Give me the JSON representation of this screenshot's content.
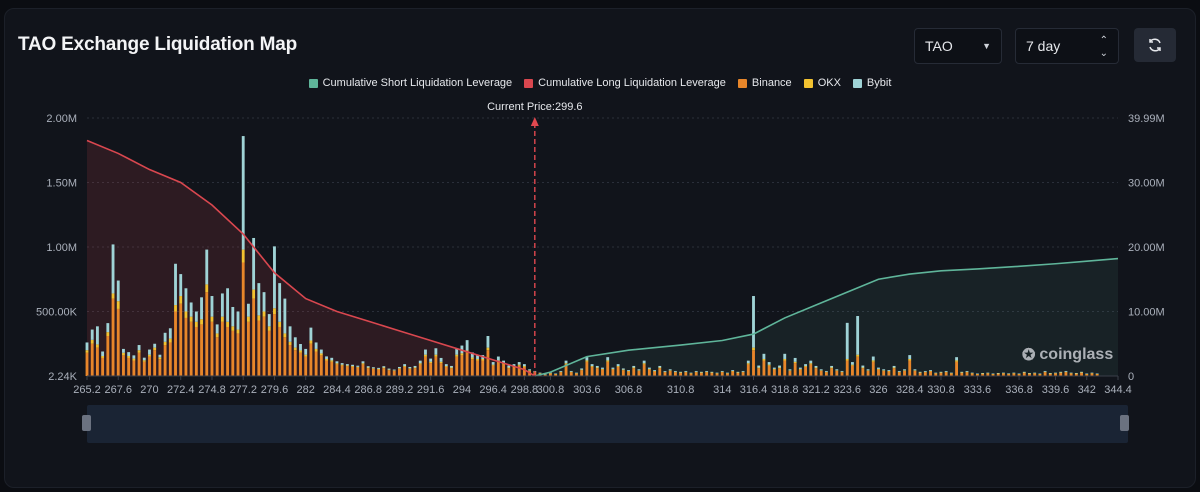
{
  "header": {
    "title": "TAO Exchange Liquidation Map"
  },
  "controls": {
    "coin": "TAO",
    "period": "7 day"
  },
  "watermark": "coinglass",
  "colors": {
    "short_line": "#5fb59a",
    "long_line": "#d9474f",
    "binance": "#e8862a",
    "okx": "#f2c230",
    "bybit": "#9fd3d6"
  },
  "chart_data": {
    "type": "bar",
    "title": "TAO Exchange Liquidation Map",
    "current_price_label": "Current Price:299.6",
    "current_price": 299.6,
    "legend": [
      "Cumulative Short Liquidation Leverage",
      "Cumulative Long Liquidation Leverage",
      "Binance",
      "OKX",
      "Bybit"
    ],
    "x_range": [
      265.2,
      344.4
    ],
    "x_ticks": [
      "265.2",
      "267.6",
      "270",
      "272.4",
      "274.8",
      "277.2",
      "279.6",
      "282",
      "284.4",
      "286.8",
      "289.2",
      "291.6",
      "294",
      "296.4",
      "298.8",
      "300.8",
      "303.6",
      "306.8",
      "310.8",
      "314",
      "316.4",
      "318.8",
      "321.2",
      "323.6",
      "326",
      "328.4",
      "330.8",
      "333.6",
      "336.8",
      "339.6",
      "342",
      "344.4"
    ],
    "y_left_ticks": [
      "2.24K",
      "500.00K",
      "1.00M",
      "1.50M",
      "2.00M"
    ],
    "y_left_range": [
      0,
      2000000
    ],
    "y_right_ticks": [
      "0",
      "10.00M",
      "20.00M",
      "30.00M",
      "39.99M"
    ],
    "y_right_range": [
      0,
      39990000
    ],
    "bars_x": [
      265.2,
      265.6,
      266.0,
      266.4,
      266.8,
      267.2,
      267.6,
      268.0,
      268.4,
      268.8,
      269.2,
      269.6,
      270.0,
      270.4,
      270.8,
      271.2,
      271.6,
      272.0,
      272.4,
      272.8,
      273.2,
      273.6,
      274.0,
      274.4,
      274.8,
      275.2,
      275.6,
      276.0,
      276.4,
      276.8,
      277.2,
      277.6,
      278.0,
      278.4,
      278.8,
      279.2,
      279.6,
      280.0,
      280.4,
      280.8,
      281.2,
      281.6,
      282.0,
      282.4,
      282.8,
      283.2,
      283.6,
      284.0,
      284.4,
      284.8,
      285.2,
      285.6,
      286.0,
      286.4,
      286.8,
      287.2,
      287.6,
      288.0,
      288.4,
      288.8,
      289.2,
      289.6,
      290.0,
      290.4,
      290.8,
      291.2,
      291.6,
      292.0,
      292.4,
      292.8,
      293.2,
      293.6,
      294.0,
      294.4,
      294.8,
      295.2,
      295.6,
      296.0,
      296.4,
      296.8,
      297.2,
      297.6,
      298.0,
      298.4,
      298.8,
      299.2,
      299.6,
      300.0,
      300.4,
      300.8,
      301.2,
      301.6,
      302.0,
      302.4,
      302.8,
      303.2,
      303.6,
      304.0,
      304.4,
      304.8,
      305.2,
      305.6,
      306.0,
      306.4,
      306.8,
      307.2,
      307.6,
      308.0,
      308.4,
      308.8,
      309.2,
      309.6,
      310.0,
      310.4,
      310.8,
      311.2,
      311.6,
      312.0,
      312.4,
      312.8,
      313.2,
      313.6,
      314.0,
      314.4,
      314.8,
      315.2,
      315.6,
      316.0,
      316.4,
      316.8,
      317.2,
      317.6,
      318.0,
      318.4,
      318.8,
      319.2,
      319.6,
      320.0,
      320.4,
      320.8,
      321.2,
      321.6,
      322.0,
      322.4,
      322.8,
      323.2,
      323.6,
      324.0,
      324.4,
      324.8,
      325.2,
      325.6,
      326.0,
      326.4,
      326.8,
      327.2,
      327.6,
      328.0,
      328.4,
      328.8,
      329.2,
      329.6,
      330.0,
      330.4,
      330.8,
      331.2,
      331.6,
      332.0,
      332.4,
      332.8,
      333.2,
      333.6,
      334.0,
      334.4,
      334.8,
      335.2,
      335.6,
      336.0,
      336.4,
      336.8,
      337.2,
      337.6,
      338.0,
      338.4,
      338.8,
      339.2,
      339.6,
      340.0,
      340.4,
      340.8,
      341.2,
      341.6,
      342.0,
      342.4,
      342.8,
      343.2,
      343.6,
      344.0,
      344.4
    ],
    "series": [
      {
        "name": "Binance",
        "values": [
          180000,
          250000,
          220000,
          140000,
          310000,
          600000,
          520000,
          160000,
          140000,
          120000,
          180000,
          110000,
          150000,
          200000,
          130000,
          240000,
          260000,
          500000,
          560000,
          450000,
          420000,
          380000,
          400000,
          650000,
          420000,
          300000,
          420000,
          380000,
          350000,
          330000,
          880000,
          420000,
          600000,
          430000,
          460000,
          350000,
          480000,
          380000,
          300000,
          240000,
          200000,
          180000,
          150000,
          250000,
          190000,
          160000,
          120000,
          110000,
          90000,
          80000,
          75000,
          70000,
          65000,
          90000,
          60000,
          55000,
          50000,
          60000,
          45000,
          40000,
          55000,
          70000,
          55000,
          60000,
          90000,
          150000,
          100000,
          150000,
          100000,
          70000,
          60000,
          150000,
          160000,
          180000,
          130000,
          120000,
          120000,
          200000,
          80000,
          110000,
          90000,
          60000,
          70000,
          80000,
          70000,
          40000,
          30000,
          20000,
          10000,
          20000,
          15000,
          30000,
          90000,
          30000,
          20000,
          45000,
          110000,
          70000,
          60000,
          50000,
          110000,
          50000,
          70000,
          45000,
          35000,
          60000,
          40000,
          90000,
          50000,
          35000,
          60000,
          30000,
          40000,
          30000,
          25000,
          30000,
          20000,
          30000,
          25000,
          30000,
          25000,
          20000,
          30000,
          20000,
          35000,
          25000,
          30000,
          90000,
          200000,
          60000,
          120000,
          80000,
          50000,
          60000,
          120000,
          40000,
          100000,
          50000,
          70000,
          90000,
          60000,
          40000,
          30000,
          60000,
          40000,
          30000,
          120000,
          80000,
          150000,
          60000,
          40000,
          110000,
          50000,
          40000,
          35000,
          60000,
          30000,
          40000,
          120000,
          40000,
          25000,
          30000,
          35000,
          20000,
          25000,
          30000,
          20000,
          110000,
          25000,
          30000,
          20000,
          15000,
          18000,
          20000,
          15000,
          18000,
          20000,
          16000,
          20000,
          15000,
          25000,
          18000,
          20000,
          15000,
          30000,
          18000,
          20000,
          25000,
          30000,
          20000,
          18000,
          25000,
          15000,
          20000,
          15000
        ]
      },
      {
        "name": "OKX",
        "values": [
          20000,
          30000,
          25000,
          15000,
          30000,
          40000,
          60000,
          20000,
          15000,
          15000,
          20000,
          12000,
          15000,
          20000,
          15000,
          25000,
          30000,
          50000,
          60000,
          50000,
          40000,
          40000,
          40000,
          60000,
          40000,
          30000,
          40000,
          40000,
          35000,
          30000,
          100000,
          40000,
          70000,
          40000,
          40000,
          35000,
          45000,
          40000,
          30000,
          25000,
          20000,
          18000,
          15000,
          25000,
          20000,
          15000,
          12000,
          11000,
          9000,
          8000,
          7000,
          7000,
          6000,
          9000,
          6000,
          5000,
          5000,
          6000,
          4500,
          4000,
          5000,
          7000,
          5000,
          6000,
          9000,
          15000,
          10000,
          15000,
          10000,
          7000,
          6000,
          15000,
          16000,
          18000,
          13000,
          12000,
          12000,
          20000,
          8000,
          11000,
          9000,
          6000,
          7000,
          8000,
          7000,
          4000,
          3000,
          2000,
          1000,
          2000,
          1500,
          3000,
          9000,
          3000,
          2000,
          4500,
          11000,
          7000,
          6000,
          5000,
          11000,
          5000,
          7000,
          4500,
          3500,
          6000,
          4000,
          9000,
          5000,
          3500,
          6000,
          3000,
          4000,
          3000,
          2500,
          3000,
          2000,
          3000,
          2500,
          3000,
          2500,
          2000,
          3000,
          2000,
          3500,
          2500,
          3000,
          9000,
          20000,
          6000,
          12000,
          8000,
          5000,
          6000,
          12000,
          4000,
          10000,
          5000,
          7000,
          9000,
          6000,
          4000,
          3000,
          6000,
          4000,
          3000,
          12000,
          8000,
          15000,
          6000,
          4000,
          11000,
          5000,
          4000,
          3500,
          6000,
          3000,
          4000,
          12000,
          4000,
          2500,
          3000,
          3500,
          2000,
          2500,
          3000,
          2000,
          11000,
          2500,
          3000,
          2000,
          1500,
          1800,
          2000,
          1500,
          1800,
          2000,
          1600,
          2000,
          1500,
          2500,
          1800,
          2000,
          1500,
          3000,
          1800,
          2000,
          2500,
          3000,
          2000,
          1800,
          2500,
          1500,
          2000,
          1500
        ]
      },
      {
        "name": "Bybit",
        "values": [
          60000,
          80000,
          140000,
          35000,
          70000,
          380000,
          160000,
          30000,
          30000,
          25000,
          40000,
          20000,
          40000,
          30000,
          20000,
          70000,
          80000,
          320000,
          170000,
          180000,
          110000,
          80000,
          170000,
          270000,
          160000,
          70000,
          180000,
          260000,
          150000,
          140000,
          880000,
          100000,
          400000,
          250000,
          150000,
          95000,
          480000,
          300000,
          270000,
          120000,
          80000,
          50000,
          45000,
          100000,
          50000,
          30000,
          20000,
          20000,
          15000,
          12000,
          10000,
          10000,
          9000,
          15000,
          10000,
          8000,
          8000,
          10000,
          8000,
          6000,
          10000,
          15000,
          10000,
          12000,
          20000,
          40000,
          25000,
          50000,
          30000,
          15000,
          12000,
          50000,
          60000,
          80000,
          40000,
          30000,
          30000,
          90000,
          20000,
          30000,
          20000,
          15000,
          15000,
          20000,
          15000,
          8000,
          6000,
          4000,
          2000,
          4000,
          3000,
          6000,
          20000,
          6000,
          4000,
          9000,
          25000,
          15000,
          12000,
          10000,
          25000,
          10000,
          15000,
          9000,
          7000,
          12000,
          8000,
          20000,
          10000,
          7000,
          12000,
          6000,
          8000,
          6000,
          5000,
          6000,
          4000,
          6000,
          5000,
          6000,
          5000,
          4000,
          6000,
          4000,
          7000,
          5000,
          6000,
          20000,
          400000,
          15000,
          40000,
          20000,
          10000,
          15000,
          40000,
          8000,
          30000,
          10000,
          15000,
          20000,
          12000,
          8000,
          6000,
          12000,
          8000,
          6000,
          280000,
          20000,
          300000,
          15000,
          8000,
          30000,
          10000,
          8000,
          7000,
          12000,
          6000,
          8000,
          30000,
          8000,
          5000,
          6000,
          7000,
          4000,
          5000,
          6000,
          4000,
          25000,
          5000,
          6000,
          4000,
          3000,
          3600,
          4000,
          3000,
          3600,
          4000,
          3200,
          4000,
          3000,
          5000,
          3600,
          4000,
          3000,
          6000,
          3600,
          4000,
          5000,
          6000,
          4000,
          3600,
          5000,
          3000,
          4000,
          3000
        ]
      }
    ],
    "cumulative_long": {
      "name": "Cumulative Long Liquidation Leverage",
      "x": [
        265.2,
        267.6,
        270,
        272.4,
        274.8,
        277.2,
        279.6,
        282,
        284.4,
        286.8,
        289.2,
        291.6,
        294,
        296.4,
        298.8,
        299.6
      ],
      "values": [
        36500000,
        34500000,
        32000000,
        30000000,
        26500000,
        22000000,
        16000000,
        12000000,
        10000000,
        8500000,
        7000000,
        5500000,
        4000000,
        2500000,
        1000000,
        0
      ]
    },
    "cumulative_short": {
      "name": "Cumulative Short Liquidation Leverage",
      "x": [
        299.6,
        300.8,
        303.6,
        306.8,
        310.8,
        314,
        316.4,
        318.8,
        321.2,
        323.6,
        326,
        328.4,
        330.8,
        333.6,
        336.8,
        339.6,
        342,
        344.4
      ],
      "values": [
        0,
        600000,
        3000000,
        4000000,
        4800000,
        5500000,
        6500000,
        9000000,
        11000000,
        13000000,
        15000000,
        15800000,
        16300000,
        16600000,
        17000000,
        17400000,
        17800000,
        18200000
      ]
    }
  }
}
